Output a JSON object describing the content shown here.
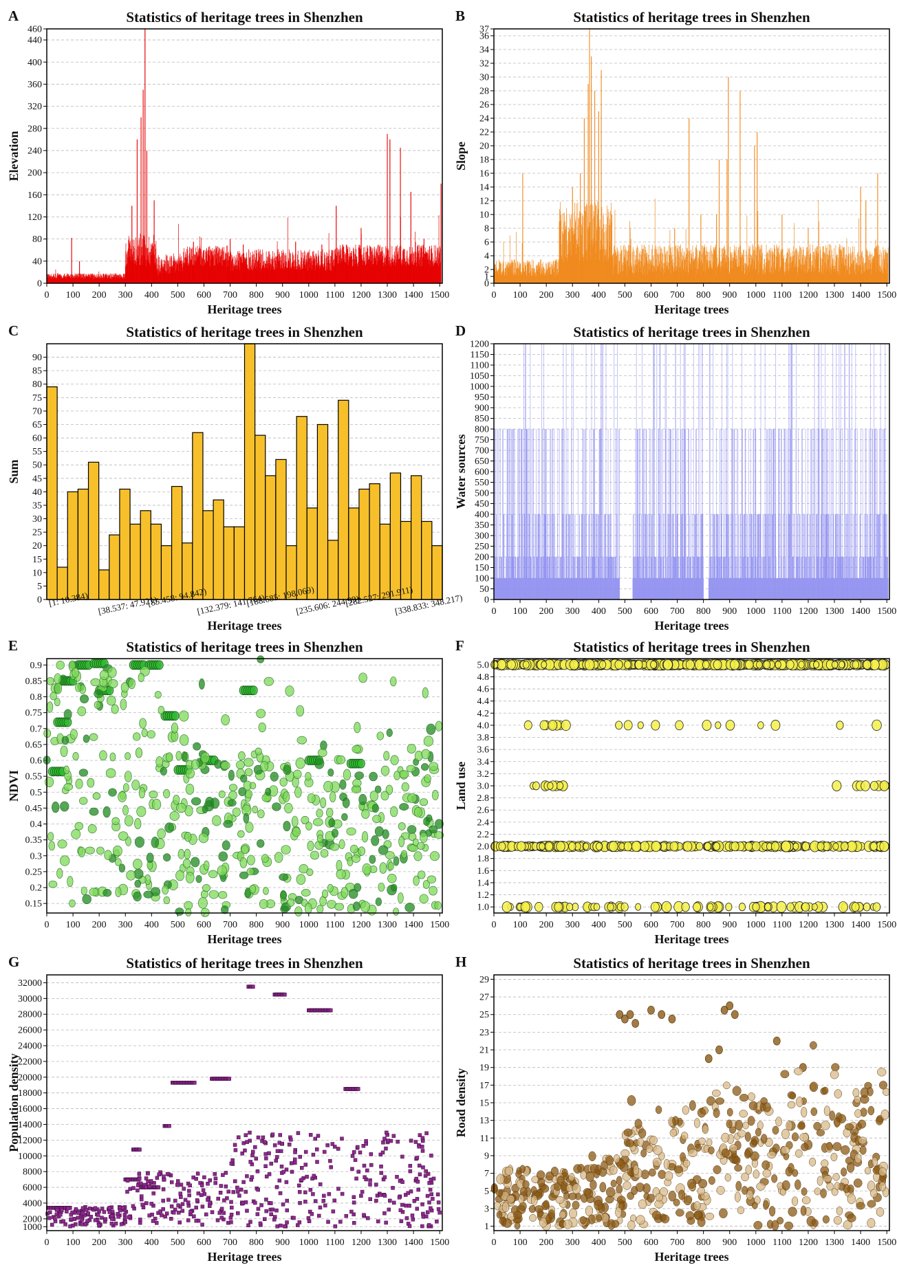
{
  "chart_data": [
    {
      "id": "A",
      "type": "bar",
      "title": "Statistics of heritage trees in Shenzhen",
      "xlabel": "Heritage trees",
      "ylabel": "Elevation",
      "color": "#e60000",
      "xlim": [
        0,
        1510
      ],
      "ylim": [
        0,
        460
      ],
      "xticks": [
        0,
        100,
        200,
        300,
        400,
        500,
        600,
        700,
        800,
        900,
        1000,
        1100,
        1200,
        1300,
        1400,
        1500
      ],
      "yticks": [
        0,
        40,
        80,
        120,
        160,
        200,
        240,
        280,
        320,
        360,
        400,
        440,
        460
      ],
      "grid": true,
      "peaks": [
        [
          95,
          82
        ],
        [
          125,
          40
        ],
        [
          325,
          140
        ],
        [
          345,
          260
        ],
        [
          360,
          300
        ],
        [
          368,
          350
        ],
        [
          375,
          460
        ],
        [
          382,
          240
        ],
        [
          410,
          150
        ],
        [
          560,
          75
        ],
        [
          600,
          60
        ],
        [
          700,
          80
        ],
        [
          750,
          70
        ],
        [
          800,
          60
        ],
        [
          950,
          75
        ],
        [
          1050,
          70
        ],
        [
          1090,
          60
        ],
        [
          1105,
          140
        ],
        [
          1130,
          70
        ],
        [
          1200,
          100
        ],
        [
          1300,
          270
        ],
        [
          1310,
          260
        ],
        [
          1350,
          245
        ],
        [
          1390,
          165
        ],
        [
          1440,
          80
        ],
        [
          1505,
          180
        ]
      ]
    },
    {
      "id": "B",
      "type": "bar",
      "title": "Statistics of heritage trees in Shenzhen",
      "xlabel": "Heritage trees",
      "ylabel": "Slope",
      "color": "#f08a1e",
      "xlim": [
        0,
        1510
      ],
      "ylim": [
        0,
        37
      ],
      "xticks": [
        0,
        100,
        200,
        300,
        400,
        500,
        600,
        700,
        800,
        900,
        1000,
        1100,
        1200,
        1300,
        1400,
        1500
      ],
      "yticks": [
        0,
        1,
        2,
        4,
        6,
        8,
        10,
        12,
        14,
        16,
        18,
        20,
        22,
        24,
        26,
        28,
        30,
        32,
        34,
        36,
        37
      ],
      "grid": true,
      "peaks": [
        [
          110,
          16
        ],
        [
          250,
          9
        ],
        [
          300,
          14
        ],
        [
          330,
          16
        ],
        [
          345,
          24
        ],
        [
          360,
          29
        ],
        [
          365,
          37
        ],
        [
          372,
          33
        ],
        [
          385,
          28
        ],
        [
          400,
          25
        ],
        [
          410,
          31
        ],
        [
          450,
          10
        ],
        [
          520,
          8
        ],
        [
          690,
          8
        ],
        [
          745,
          24
        ],
        [
          790,
          10
        ],
        [
          850,
          10
        ],
        [
          860,
          18
        ],
        [
          890,
          18
        ],
        [
          895,
          30
        ],
        [
          940,
          28
        ],
        [
          995,
          20
        ],
        [
          1005,
          22
        ],
        [
          1100,
          10
        ],
        [
          1200,
          8
        ],
        [
          1240,
          9
        ],
        [
          1400,
          14
        ],
        [
          1420,
          12
        ],
        [
          1465,
          16
        ]
      ]
    },
    {
      "id": "C",
      "type": "bar",
      "title": "Statistics of heritage trees in Shenzhen",
      "xlabel": "Heritage trees",
      "ylabel": "Sum",
      "color": "#f7c02b",
      "ylim": [
        0,
        95
      ],
      "yticks": [
        0,
        5,
        10,
        15,
        20,
        25,
        30,
        35,
        40,
        45,
        50,
        55,
        60,
        65,
        70,
        75,
        80,
        85,
        90
      ],
      "tick_labels": [
        "[1: 10.384)",
        "[38.537: 47.921)",
        "[85.458: 94.842)",
        "[132.379: 141.764)",
        "[188.685: 198.069)",
        "[235.606: 244.99)",
        "[282.527: 291.911)",
        "[338.833: 348.217)"
      ],
      "values": [
        79,
        12,
        40,
        41,
        51,
        11,
        24,
        41,
        28,
        33,
        28,
        20,
        42,
        21,
        62,
        33,
        37,
        27,
        27,
        95,
        61,
        46,
        52,
        20,
        68,
        34,
        65,
        22,
        74,
        34,
        41,
        43,
        28,
        47,
        29,
        46,
        29,
        20
      ],
      "grid": true
    },
    {
      "id": "D",
      "type": "bar",
      "title": "Statistics of heritage trees in Shenzhen",
      "xlabel": "Heritage trees",
      "ylabel": "Water sources",
      "color": "#8b8bf0",
      "xlim": [
        0,
        1510
      ],
      "ylim": [
        0,
        1200
      ],
      "xticks": [
        0,
        100,
        200,
        300,
        400,
        500,
        600,
        700,
        800,
        900,
        1000,
        1100,
        1200,
        1300,
        1400,
        1500
      ],
      "yticks": [
        0,
        50,
        100,
        150,
        200,
        250,
        300,
        350,
        400,
        450,
        500,
        550,
        600,
        650,
        700,
        750,
        800,
        850,
        900,
        950,
        1000,
        1050,
        1100,
        1150,
        1200
      ],
      "levels": [
        100,
        200,
        400,
        800,
        1200
      ],
      "grid": true
    },
    {
      "id": "E",
      "type": "scatter",
      "title": "Statistics of heritage trees in Shenzhen",
      "xlabel": "Heritage trees",
      "ylabel": "NDVI",
      "color": "#33cc33",
      "xlim": [
        0,
        1510
      ],
      "ylim": [
        0.12,
        0.92
      ],
      "xticks": [
        0,
        100,
        200,
        300,
        400,
        500,
        600,
        700,
        800,
        900,
        1000,
        1100,
        1200,
        1300,
        1400,
        1500
      ],
      "yticks": [
        0.15,
        0.2,
        0.25,
        0.3,
        0.35,
        0.4,
        0.45,
        0.5,
        0.55,
        0.6,
        0.65,
        0.7,
        0.75,
        0.8,
        0.85,
        0.9
      ],
      "grid": true
    },
    {
      "id": "F",
      "type": "scatter",
      "title": "Statistics of heritage trees in Shenzhen",
      "xlabel": "Heritage trees",
      "ylabel": "Land use",
      "color": "#f5f04a",
      "xlim": [
        0,
        1510
      ],
      "ylim": [
        0.9,
        5.1
      ],
      "xticks": [
        0,
        100,
        200,
        300,
        400,
        500,
        600,
        700,
        800,
        900,
        1000,
        1100,
        1200,
        1300,
        1400,
        1500
      ],
      "yticks": [
        "1.0",
        "1.2",
        "1.4",
        "1.6",
        "1.8",
        "2.0",
        "2.2",
        "2.4",
        "2.6",
        "2.8",
        "3.0",
        "3.2",
        "3.4",
        "3.6",
        "3.8",
        "4.0",
        "4.2",
        "4.4",
        "4.6",
        "4.8",
        "5.0"
      ],
      "levels": [
        1,
        2,
        3,
        4,
        5
      ],
      "grid": true
    },
    {
      "id": "G",
      "type": "scatter",
      "title": "Statistics of heritage trees in Shenzhen",
      "xlabel": "Heritage trees",
      "ylabel": "Population density",
      "color": "#8e2a8e",
      "xlim": [
        0,
        1510
      ],
      "ylim": [
        500,
        33000
      ],
      "xticks": [
        0,
        100,
        200,
        300,
        400,
        500,
        600,
        700,
        800,
        900,
        1000,
        1100,
        1200,
        1300,
        1400,
        1500
      ],
      "yticks": [
        1000,
        2000,
        4000,
        6000,
        8000,
        10000,
        12000,
        14000,
        16000,
        18000,
        20000,
        22000,
        24000,
        26000,
        28000,
        30000,
        32000
      ],
      "grid": true
    },
    {
      "id": "H",
      "type": "scatter",
      "title": "Statistics of heritage trees in Shenzhen",
      "xlabel": "Heritage trees",
      "ylabel": "Road density",
      "color": "#8b5a14",
      "xlim": [
        0,
        1510
      ],
      "ylim": [
        0.5,
        29.5
      ],
      "xticks": [
        0,
        100,
        200,
        300,
        400,
        500,
        600,
        700,
        800,
        900,
        1000,
        1100,
        1200,
        1300,
        1400,
        1500
      ],
      "yticks": [
        1,
        3,
        5,
        7,
        9,
        11,
        13,
        15,
        17,
        19,
        21,
        23,
        25,
        27,
        29
      ],
      "grid": true
    }
  ]
}
